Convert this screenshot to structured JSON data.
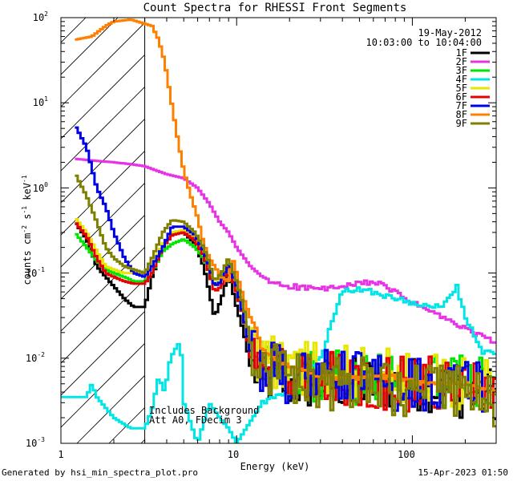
{
  "chart_data": {
    "type": "line",
    "title": "Count Spectra for RHESSI Front Segments",
    "xlabel": "Energy (keV)",
    "ylabel_text": "counts cm",
    "ylabel_exp1": "-2",
    "ylabel_mid1": " s",
    "ylabel_exp2": "-1",
    "ylabel_mid2": " keV",
    "ylabel_exp3": "-1",
    "xscale": "log",
    "yscale": "log",
    "xlim": [
      1,
      300
    ],
    "ylim": [
      0.001,
      100
    ],
    "x_tick_labels": [
      "1",
      "10",
      "100"
    ],
    "y_tick_labels": [
      {
        "base": "10",
        "exp": "-3"
      },
      {
        "base": "10",
        "exp": "-2"
      },
      {
        "base": "10",
        "exp": "-1"
      },
      {
        "base": "10",
        "exp": "0"
      },
      {
        "base": "10",
        "exp": "1"
      },
      {
        "base": "10",
        "exp": "2"
      }
    ],
    "date": "19-May-2012",
    "time_range": "10:03:00 to 10:04:00",
    "attenuator_threshold_kev": 3,
    "annotation_line1": "Includes Background",
    "annotation_line2": "Att A0, FDecim 3",
    "legend_position": "top-right",
    "series": [
      {
        "name": "1F",
        "color": "#000000",
        "style": "noisy",
        "points": [
          [
            1.2,
            0.4
          ],
          [
            1.4,
            0.25
          ],
          [
            1.6,
            0.12
          ],
          [
            1.8,
            0.09
          ],
          [
            2.0,
            0.07
          ],
          [
            2.3,
            0.05
          ],
          [
            2.6,
            0.04
          ],
          [
            3.0,
            0.04
          ],
          [
            3.3,
            0.09
          ],
          [
            3.8,
            0.2
          ],
          [
            4.3,
            0.3
          ],
          [
            5.0,
            0.3
          ],
          [
            5.8,
            0.22
          ],
          [
            6.5,
            0.12
          ],
          [
            7.0,
            0.06
          ],
          [
            7.5,
            0.03
          ],
          [
            8.2,
            0.05
          ],
          [
            9.0,
            0.1
          ],
          [
            10.0,
            0.04
          ],
          [
            11.0,
            0.02
          ],
          [
            12.0,
            0.008
          ],
          [
            14.0,
            0.006
          ],
          [
            20.0,
            0.005
          ],
          [
            30.0,
            0.005
          ],
          [
            50.0,
            0.005
          ],
          [
            80.0,
            0.005
          ],
          [
            120.0,
            0.005
          ],
          [
            200.0,
            0.004
          ],
          [
            300.0,
            0.004
          ]
        ]
      },
      {
        "name": "2F",
        "color": "#e633e6",
        "style": "smooth",
        "points": [
          [
            1.2,
            2.2
          ],
          [
            1.5,
            2.1
          ],
          [
            2.0,
            2.0
          ],
          [
            2.5,
            1.9
          ],
          [
            3.0,
            1.8
          ],
          [
            3.5,
            1.6
          ],
          [
            4.0,
            1.45
          ],
          [
            5.0,
            1.3
          ],
          [
            6.0,
            1.0
          ],
          [
            7.0,
            0.65
          ],
          [
            8.0,
            0.4
          ],
          [
            9.0,
            0.3
          ],
          [
            10.0,
            0.2
          ],
          [
            12.0,
            0.12
          ],
          [
            15.0,
            0.08
          ],
          [
            20.0,
            0.07
          ],
          [
            30.0,
            0.065
          ],
          [
            40.0,
            0.068
          ],
          [
            50.0,
            0.075
          ],
          [
            60.0,
            0.08
          ],
          [
            80.0,
            0.06
          ],
          [
            100.0,
            0.045
          ],
          [
            150.0,
            0.03
          ],
          [
            200.0,
            0.022
          ],
          [
            250.0,
            0.018
          ],
          [
            300.0,
            0.015
          ]
        ]
      },
      {
        "name": "3F",
        "color": "#00e600",
        "style": "noisy",
        "points": [
          [
            1.2,
            0.3
          ],
          [
            1.4,
            0.2
          ],
          [
            1.6,
            0.14
          ],
          [
            1.8,
            0.11
          ],
          [
            2.0,
            0.1
          ],
          [
            2.3,
            0.09
          ],
          [
            2.6,
            0.08
          ],
          [
            3.0,
            0.08
          ],
          [
            3.3,
            0.1
          ],
          [
            3.8,
            0.18
          ],
          [
            4.3,
            0.22
          ],
          [
            5.0,
            0.25
          ],
          [
            5.8,
            0.2
          ],
          [
            6.5,
            0.15
          ],
          [
            7.0,
            0.1
          ],
          [
            7.5,
            0.07
          ],
          [
            8.2,
            0.08
          ],
          [
            9.0,
            0.12
          ],
          [
            10.0,
            0.06
          ],
          [
            11.0,
            0.03
          ],
          [
            12.0,
            0.012
          ],
          [
            14.0,
            0.008
          ],
          [
            20.0,
            0.007
          ],
          [
            30.0,
            0.006
          ],
          [
            50.0,
            0.006
          ],
          [
            80.0,
            0.006
          ],
          [
            120.0,
            0.006
          ],
          [
            200.0,
            0.005
          ],
          [
            300.0,
            0.005
          ]
        ]
      },
      {
        "name": "4F",
        "color": "#00e6e6",
        "style": "smooth",
        "points": [
          [
            1.0,
            0.0035
          ],
          [
            1.4,
            0.0035
          ],
          [
            1.5,
            0.005
          ],
          [
            1.6,
            0.0035
          ],
          [
            2.0,
            0.002
          ],
          [
            2.5,
            0.0015
          ],
          [
            3.0,
            0.0015
          ],
          [
            3.3,
            0.0025
          ],
          [
            3.6,
            0.006
          ],
          [
            3.9,
            0.004
          ],
          [
            4.2,
            0.01
          ],
          [
            4.5,
            0.013
          ],
          [
            4.8,
            0.016
          ],
          [
            5.0,
            0.003
          ],
          [
            6.0,
            0.001
          ],
          [
            7.0,
            0.003
          ],
          [
            8.0,
            0.002
          ],
          [
            9.0,
            0.0015
          ],
          [
            10.0,
            0.001
          ],
          [
            14.0,
            0.003
          ],
          [
            20.0,
            0.004
          ],
          [
            30.0,
            0.01
          ],
          [
            40.0,
            0.06
          ],
          [
            50.0,
            0.065
          ],
          [
            60.0,
            0.06
          ],
          [
            80.0,
            0.05
          ],
          [
            100.0,
            0.045
          ],
          [
            150.0,
            0.04
          ],
          [
            180.0,
            0.07
          ],
          [
            200.0,
            0.03
          ],
          [
            250.0,
            0.012
          ],
          [
            300.0,
            0.011
          ]
        ]
      },
      {
        "name": "5F",
        "color": "#e6e600",
        "style": "noisy",
        "points": [
          [
            1.2,
            0.45
          ],
          [
            1.4,
            0.3
          ],
          [
            1.6,
            0.18
          ],
          [
            1.8,
            0.12
          ],
          [
            2.0,
            0.11
          ],
          [
            2.3,
            0.1
          ],
          [
            2.6,
            0.1
          ],
          [
            3.0,
            0.1
          ],
          [
            3.3,
            0.12
          ],
          [
            3.8,
            0.22
          ],
          [
            4.3,
            0.3
          ],
          [
            5.0,
            0.32
          ],
          [
            5.8,
            0.25
          ],
          [
            6.5,
            0.17
          ],
          [
            7.0,
            0.12
          ],
          [
            7.5,
            0.08
          ],
          [
            8.2,
            0.09
          ],
          [
            9.0,
            0.14
          ],
          [
            10.0,
            0.07
          ],
          [
            11.0,
            0.035
          ],
          [
            12.0,
            0.015
          ],
          [
            14.0,
            0.01
          ],
          [
            20.0,
            0.008
          ],
          [
            30.0,
            0.007
          ],
          [
            50.0,
            0.007
          ],
          [
            80.0,
            0.006
          ],
          [
            120.0,
            0.006
          ],
          [
            200.0,
            0.005
          ],
          [
            300.0,
            0.005
          ]
        ]
      },
      {
        "name": "6F",
        "color": "#e60000",
        "style": "noisy",
        "points": [
          [
            1.2,
            0.4
          ],
          [
            1.4,
            0.27
          ],
          [
            1.6,
            0.15
          ],
          [
            1.8,
            0.1
          ],
          [
            2.0,
            0.09
          ],
          [
            2.3,
            0.08
          ],
          [
            2.6,
            0.075
          ],
          [
            3.0,
            0.075
          ],
          [
            3.3,
            0.1
          ],
          [
            3.8,
            0.2
          ],
          [
            4.3,
            0.28
          ],
          [
            5.0,
            0.3
          ],
          [
            5.8,
            0.24
          ],
          [
            6.5,
            0.16
          ],
          [
            7.0,
            0.1
          ],
          [
            7.5,
            0.06
          ],
          [
            8.2,
            0.07
          ],
          [
            9.0,
            0.12
          ],
          [
            10.0,
            0.06
          ],
          [
            11.0,
            0.03
          ],
          [
            12.0,
            0.01
          ],
          [
            14.0,
            0.008
          ],
          [
            20.0,
            0.006
          ],
          [
            30.0,
            0.006
          ],
          [
            50.0,
            0.005
          ],
          [
            80.0,
            0.005
          ],
          [
            120.0,
            0.005
          ],
          [
            200.0,
            0.005
          ],
          [
            300.0,
            0.004
          ]
        ]
      },
      {
        "name": "7F",
        "color": "#0000e6",
        "style": "noisy",
        "points": [
          [
            1.2,
            5.5
          ],
          [
            1.4,
            3.0
          ],
          [
            1.6,
            1.0
          ],
          [
            1.8,
            0.6
          ],
          [
            2.0,
            0.3
          ],
          [
            2.3,
            0.15
          ],
          [
            2.6,
            0.1
          ],
          [
            3.0,
            0.09
          ],
          [
            3.3,
            0.12
          ],
          [
            3.8,
            0.2
          ],
          [
            4.3,
            0.35
          ],
          [
            5.0,
            0.35
          ],
          [
            5.8,
            0.28
          ],
          [
            6.5,
            0.18
          ],
          [
            7.0,
            0.12
          ],
          [
            7.5,
            0.07
          ],
          [
            8.2,
            0.08
          ],
          [
            9.0,
            0.13
          ],
          [
            10.0,
            0.07
          ],
          [
            11.0,
            0.03
          ],
          [
            12.0,
            0.012
          ],
          [
            14.0,
            0.008
          ],
          [
            20.0,
            0.006
          ],
          [
            30.0,
            0.006
          ],
          [
            50.0,
            0.006
          ],
          [
            80.0,
            0.005
          ],
          [
            120.0,
            0.005
          ],
          [
            200.0,
            0.005
          ],
          [
            300.0,
            0.004
          ]
        ]
      },
      {
        "name": "8F",
        "color": "#ff8000",
        "style": "smooth",
        "points": [
          [
            1.2,
            55
          ],
          [
            1.5,
            60
          ],
          [
            1.8,
            80
          ],
          [
            2.0,
            90
          ],
          [
            2.5,
            95
          ],
          [
            3.0,
            85
          ],
          [
            3.3,
            80
          ],
          [
            3.6,
            55
          ],
          [
            3.9,
            30
          ],
          [
            4.2,
            12
          ],
          [
            4.6,
            4.0
          ],
          [
            5.0,
            1.6
          ],
          [
            5.5,
            0.8
          ],
          [
            6.0,
            0.45
          ],
          [
            6.5,
            0.22
          ],
          [
            7.0,
            0.15
          ],
          [
            7.5,
            0.12
          ],
          [
            8.2,
            0.09
          ],
          [
            9.0,
            0.08
          ],
          [
            9.5,
            0.15
          ],
          [
            10.0,
            0.1
          ],
          [
            11.0,
            0.05
          ],
          [
            12.0,
            0.03
          ],
          [
            13.0,
            0.022
          ],
          [
            14.0,
            0.012
          ],
          [
            20.0,
            0.008
          ],
          [
            30.0,
            0.006
          ],
          [
            50.0,
            0.006
          ],
          [
            80.0,
            0.006
          ],
          [
            120.0,
            0.005
          ],
          [
            200.0,
            0.005
          ],
          [
            300.0,
            0.004
          ]
        ]
      },
      {
        "name": "9F",
        "color": "#808000",
        "style": "noisy",
        "points": [
          [
            1.2,
            1.5
          ],
          [
            1.4,
            0.8
          ],
          [
            1.6,
            0.4
          ],
          [
            1.8,
            0.2
          ],
          [
            2.0,
            0.15
          ],
          [
            2.3,
            0.12
          ],
          [
            2.6,
            0.11
          ],
          [
            3.0,
            0.1
          ],
          [
            3.3,
            0.15
          ],
          [
            3.8,
            0.3
          ],
          [
            4.3,
            0.42
          ],
          [
            5.0,
            0.4
          ],
          [
            5.8,
            0.3
          ],
          [
            6.5,
            0.2
          ],
          [
            7.0,
            0.13
          ],
          [
            7.5,
            0.08
          ],
          [
            8.2,
            0.1
          ],
          [
            9.0,
            0.15
          ],
          [
            10.0,
            0.08
          ],
          [
            11.0,
            0.04
          ],
          [
            12.0,
            0.015
          ],
          [
            14.0,
            0.008
          ],
          [
            20.0,
            0.006
          ],
          [
            30.0,
            0.005
          ],
          [
            50.0,
            0.005
          ],
          [
            80.0,
            0.004
          ],
          [
            120.0,
            0.004
          ],
          [
            200.0,
            0.004
          ],
          [
            300.0,
            0.003
          ]
        ]
      }
    ]
  },
  "footer": {
    "generated_by": "Generated by hsi_min_spectra_plot.pro",
    "timestamp": "15-Apr-2023 01:50"
  }
}
